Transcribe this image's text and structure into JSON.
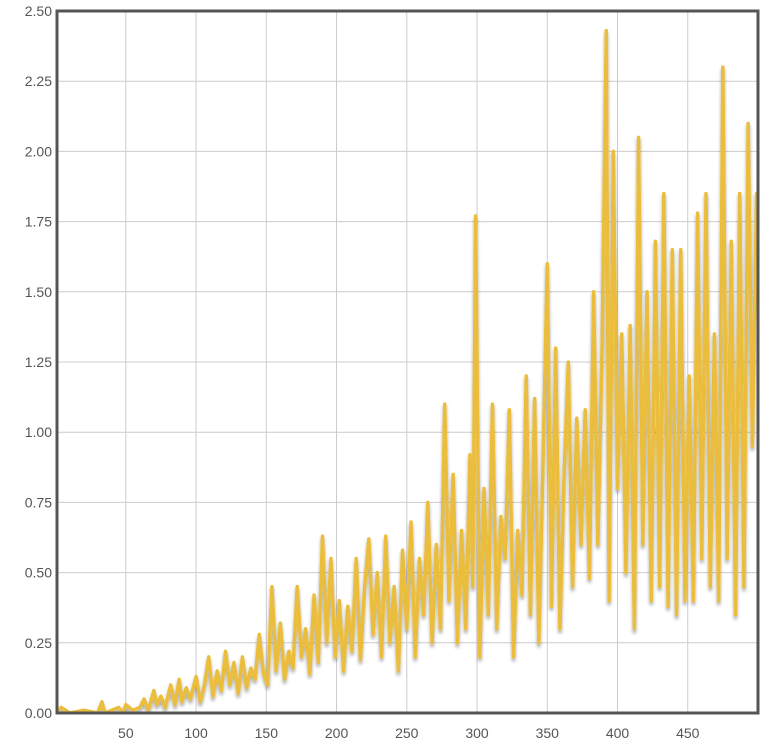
{
  "chart_data": {
    "type": "line",
    "title": "",
    "xlabel": "",
    "ylabel": "",
    "xlim": [
      1,
      500
    ],
    "ylim": [
      0,
      2.5
    ],
    "grid": true,
    "legend": "none",
    "line_color": "#ebbd3e",
    "grid_color": "#cccccc",
    "frame_color": "#555555",
    "x_ticks": [
      {
        "value": 50,
        "label": "50"
      },
      {
        "value": 100,
        "label": "100"
      },
      {
        "value": 150,
        "label": "150"
      },
      {
        "value": 200,
        "label": "200"
      },
      {
        "value": 250,
        "label": "250"
      },
      {
        "value": 300,
        "label": "300"
      },
      {
        "value": 350,
        "label": "350"
      },
      {
        "value": 400,
        "label": "400"
      },
      {
        "value": 450,
        "label": "450"
      }
    ],
    "y_ticks": [
      {
        "value": 0,
        "label": "0.00"
      },
      {
        "value": 0.25,
        "label": "0.25"
      },
      {
        "value": 0.5,
        "label": "0.50"
      },
      {
        "value": 0.75,
        "label": "0.75"
      },
      {
        "value": 1.0,
        "label": "1.00"
      },
      {
        "value": 1.25,
        "label": "1.25"
      },
      {
        "value": 1.5,
        "label": "1.50"
      },
      {
        "value": 1.75,
        "label": "1.75"
      },
      {
        "value": 2.0,
        "label": "2.00"
      },
      {
        "value": 2.25,
        "label": "2.25"
      },
      {
        "value": 2.5,
        "label": "2.50"
      }
    ],
    "series": [
      {
        "x": [
          1,
          4,
          10,
          20,
          30,
          33,
          35,
          40,
          45,
          48,
          50,
          55,
          60,
          63,
          66,
          70,
          72,
          75,
          78,
          82,
          85,
          88,
          90,
          93,
          96,
          100,
          103,
          106,
          109,
          112,
          115,
          118,
          121,
          124,
          127,
          130,
          133,
          136,
          139,
          142,
          145,
          148,
          151,
          154,
          157,
          160,
          163,
          166,
          169,
          172,
          175,
          178,
          181,
          184,
          187,
          190,
          193,
          196,
          199,
          202,
          205,
          208,
          211,
          214,
          217,
          220,
          223,
          226,
          229,
          232,
          235,
          238,
          241,
          244,
          247,
          250,
          253,
          256,
          259,
          262,
          265,
          268,
          271,
          274,
          277,
          280,
          283,
          286,
          289,
          292,
          295,
          297,
          299,
          302,
          305,
          308,
          311,
          314,
          317,
          320,
          323,
          326,
          329,
          332,
          335,
          338,
          341,
          344,
          347,
          350,
          353,
          356,
          359,
          362,
          365,
          368,
          371,
          374,
          377,
          380,
          383,
          386,
          389,
          392,
          394,
          397,
          400,
          403,
          406,
          409,
          412,
          415,
          418,
          421,
          424,
          427,
          430,
          433,
          436,
          439,
          442,
          445,
          448,
          451,
          454,
          457,
          460,
          463,
          466,
          469,
          472,
          475,
          478,
          481,
          484,
          487,
          490,
          493,
          496,
          499
        ],
        "y": [
          0.0,
          0.02,
          0.0,
          0.01,
          0.0,
          0.04,
          0.0,
          0.01,
          0.02,
          0.0,
          0.03,
          0.01,
          0.02,
          0.05,
          0.01,
          0.08,
          0.03,
          0.06,
          0.02,
          0.1,
          0.03,
          0.12,
          0.04,
          0.09,
          0.05,
          0.13,
          0.04,
          0.1,
          0.2,
          0.06,
          0.15,
          0.08,
          0.22,
          0.1,
          0.18,
          0.07,
          0.2,
          0.09,
          0.16,
          0.12,
          0.28,
          0.14,
          0.1,
          0.45,
          0.15,
          0.32,
          0.12,
          0.22,
          0.16,
          0.45,
          0.2,
          0.3,
          0.14,
          0.42,
          0.18,
          0.63,
          0.25,
          0.55,
          0.2,
          0.4,
          0.15,
          0.38,
          0.22,
          0.55,
          0.19,
          0.45,
          0.62,
          0.28,
          0.5,
          0.2,
          0.63,
          0.25,
          0.45,
          0.15,
          0.58,
          0.3,
          0.68,
          0.2,
          0.55,
          0.35,
          0.75,
          0.25,
          0.6,
          0.3,
          1.1,
          0.4,
          0.85,
          0.25,
          0.65,
          0.3,
          0.92,
          0.45,
          1.77,
          0.2,
          0.8,
          0.35,
          1.1,
          0.3,
          0.7,
          0.55,
          1.08,
          0.2,
          0.65,
          0.42,
          1.2,
          0.35,
          1.12,
          0.25,
          0.9,
          1.6,
          0.38,
          1.3,
          0.3,
          0.85,
          1.25,
          0.45,
          1.05,
          0.6,
          1.08,
          0.48,
          1.5,
          0.6,
          1.3,
          2.43,
          0.4,
          2.0,
          0.8,
          1.35,
          0.5,
          1.38,
          0.3,
          2.05,
          0.6,
          1.5,
          0.4,
          1.68,
          0.45,
          1.85,
          0.38,
          1.65,
          0.35,
          1.65,
          0.4,
          1.2,
          0.4,
          1.78,
          0.55,
          1.85,
          0.45,
          1.35,
          0.4,
          2.3,
          0.55,
          1.68,
          0.35,
          1.85,
          0.45,
          2.1,
          0.95,
          1.85
        ]
      }
    ]
  }
}
